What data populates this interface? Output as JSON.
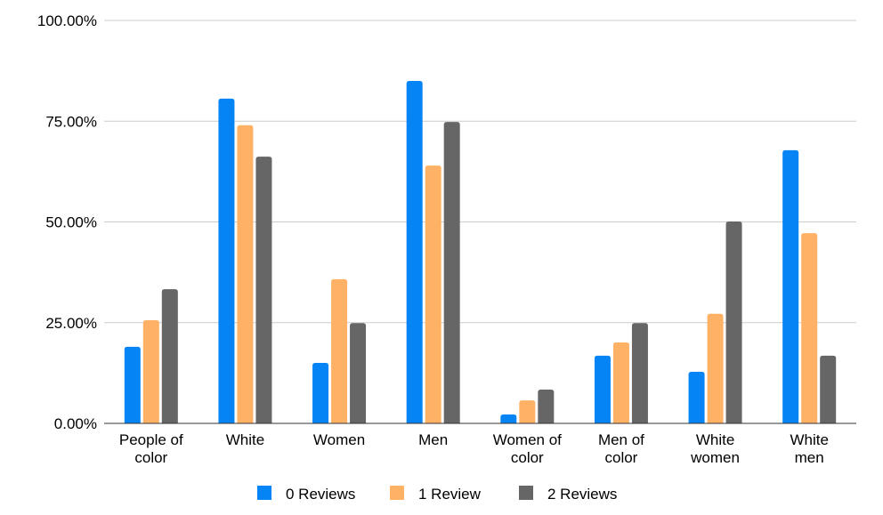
{
  "chart_data": {
    "type": "bar",
    "categories": [
      [
        "People of",
        "color"
      ],
      [
        "White"
      ],
      [
        "Women"
      ],
      [
        "Men"
      ],
      [
        "Women of",
        "color"
      ],
      [
        "Men of",
        "color"
      ],
      [
        "White",
        "women"
      ],
      [
        "White",
        "men"
      ]
    ],
    "series": [
      {
        "name": "0 Reviews",
        "color": "#0584f6",
        "values": [
          19.0,
          80.6,
          15.0,
          85.0,
          2.2,
          16.8,
          12.8,
          67.8
        ]
      },
      {
        "name": "1 Review",
        "color": "#ffb266",
        "values": [
          25.6,
          74.0,
          35.8,
          64.0,
          5.7,
          20.1,
          27.2,
          47.2
        ]
      },
      {
        "name": "2 Reviews",
        "color": "#666666",
        "values": [
          33.3,
          66.2,
          24.9,
          74.8,
          8.4,
          24.9,
          50.1,
          16.8
        ]
      }
    ],
    "yticks": [
      "0.00%",
      "25.00%",
      "50.00%",
      "75.00%",
      "100.00%"
    ],
    "ylim": [
      0,
      100
    ],
    "grid": true,
    "legend": "bottom",
    "title": "",
    "xlabel": "",
    "ylabel": ""
  }
}
